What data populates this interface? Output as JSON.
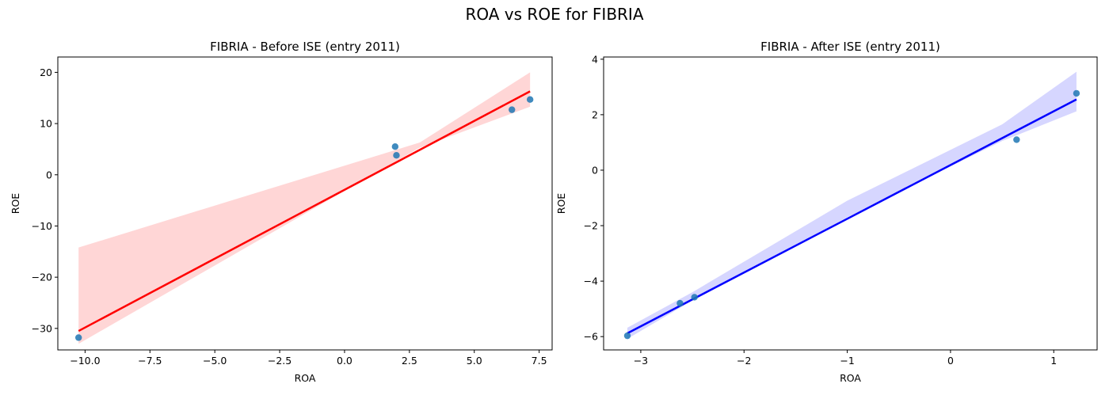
{
  "suptitle": "ROA vs ROE for FIBRIA",
  "chart_data": [
    {
      "type": "scatter",
      "title": "FIBRIA - Before ISE (entry 2011)",
      "xlabel": "ROA",
      "ylabel": "ROE",
      "xlim": [
        -11.05,
        8.0
      ],
      "ylim": [
        -34.2,
        23.0
      ],
      "xticks": [
        -10.0,
        -7.5,
        -5.0,
        -2.5,
        0.0,
        2.5,
        5.0,
        7.5
      ],
      "xtick_labels": [
        "−10.0",
        "−7.5",
        "−5.0",
        "−2.5",
        "0.0",
        "2.5",
        "5.0",
        "7.5"
      ],
      "yticks": [
        -30,
        -20,
        -10,
        0,
        10,
        20
      ],
      "ytick_labels": [
        "−30",
        "−20",
        "−10",
        "0",
        "10",
        "20"
      ],
      "points": [
        {
          "x": -10.25,
          "y": -31.8
        },
        {
          "x": 1.95,
          "y": 5.5
        },
        {
          "x": 2.0,
          "y": 3.8
        },
        {
          "x": 6.45,
          "y": 12.7
        },
        {
          "x": 7.15,
          "y": 14.7
        }
      ],
      "fit": {
        "x": [
          -10.25,
          7.15
        ],
        "y": [
          -30.5,
          16.3
        ]
      },
      "ci_upper": [
        [
          -10.25,
          -14.2
        ],
        [
          2.9,
          6.3
        ],
        [
          7.15,
          20.0
        ]
      ],
      "ci_lower": [
        [
          -10.25,
          -33.0
        ],
        [
          2.9,
          5.3
        ],
        [
          7.15,
          13.3
        ]
      ],
      "point_color": "#1f77b4",
      "line_color": "#ff0000",
      "band_color": "#ffd6d6"
    },
    {
      "type": "scatter",
      "title": "FIBRIA - After ISE (entry 2011)",
      "xlabel": "ROA",
      "ylabel": "ROE",
      "xlim": [
        -3.36,
        1.42
      ],
      "ylim": [
        -6.48,
        4.08
      ],
      "xticks": [
        -3,
        -2,
        -1,
        0,
        1
      ],
      "xtick_labels": [
        "−3",
        "−2",
        "−1",
        "0",
        "1"
      ],
      "yticks": [
        -6,
        -4,
        -2,
        0,
        2,
        4
      ],
      "ytick_labels": [
        "−6",
        "−4",
        "−2",
        "0",
        "2",
        "4"
      ],
      "points": [
        {
          "x": -3.13,
          "y": -5.97
        },
        {
          "x": -2.62,
          "y": -4.8
        },
        {
          "x": -2.48,
          "y": -4.58
        },
        {
          "x": 0.64,
          "y": 1.1
        },
        {
          "x": 1.22,
          "y": 2.77
        }
      ],
      "fit": {
        "x": [
          -3.13,
          1.22
        ],
        "y": [
          -5.88,
          2.55
        ]
      },
      "ci_upper": [
        [
          -3.13,
          -5.68
        ],
        [
          -2.5,
          -4.4
        ],
        [
          -1.0,
          -1.1
        ],
        [
          0.5,
          1.65
        ],
        [
          1.22,
          3.55
        ]
      ],
      "ci_lower": [
        [
          -3.13,
          -6.08
        ],
        [
          -2.5,
          -4.7
        ],
        [
          -1.0,
          -1.7
        ],
        [
          0.5,
          1.05
        ],
        [
          1.22,
          2.12
        ]
      ],
      "point_color": "#1f77b4",
      "line_color": "#0000ff",
      "band_color": "#d6d6ff"
    }
  ]
}
